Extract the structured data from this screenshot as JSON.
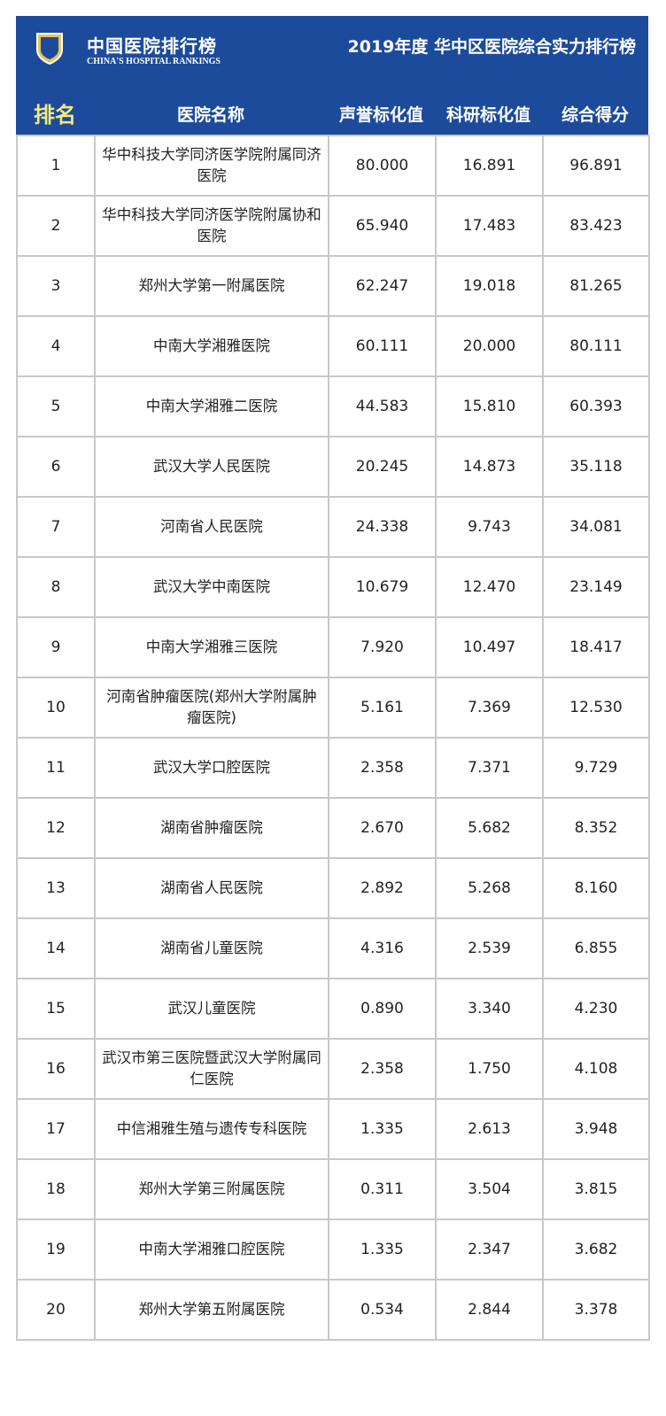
{
  "header": {
    "brand": "中国医院排行榜",
    "brand_en": "CHINA'S HOSPITAL RANKINGS",
    "title": "2019年度 华中区医院综合实力排行榜",
    "accent": "#1d4b9c"
  },
  "columns": [
    "排名",
    "医院名称",
    "声誉标化值",
    "科研标化值",
    "综合得分"
  ],
  "rows": [
    [
      "1",
      "华中科技大学同济医学院附属同济医院",
      "80.000",
      "16.891",
      "96.891"
    ],
    [
      "2",
      "华中科技大学同济医学院附属协和医院",
      "65.940",
      "17.483",
      "83.423"
    ],
    [
      "3",
      "郑州大学第一附属医院",
      "62.247",
      "19.018",
      "81.265"
    ],
    [
      "4",
      "中南大学湘雅医院",
      "60.111",
      "20.000",
      "80.111"
    ],
    [
      "5",
      "中南大学湘雅二医院",
      "44.583",
      "15.810",
      "60.393"
    ],
    [
      "6",
      "武汉大学人民医院",
      "20.245",
      "14.873",
      "35.118"
    ],
    [
      "7",
      "河南省人民医院",
      "24.338",
      "9.743",
      "34.081"
    ],
    [
      "8",
      "武汉大学中南医院",
      "10.679",
      "12.470",
      "23.149"
    ],
    [
      "9",
      "中南大学湘雅三医院",
      "7.920",
      "10.497",
      "18.417"
    ],
    [
      "10",
      "河南省肿瘤医院(郑州大学附属肿瘤医院)",
      "5.161",
      "7.369",
      "12.530"
    ],
    [
      "11",
      "武汉大学口腔医院",
      "2.358",
      "7.371",
      "9.729"
    ],
    [
      "12",
      "湖南省肿瘤医院",
      "2.670",
      "5.682",
      "8.352"
    ],
    [
      "13",
      "湖南省人民医院",
      "2.892",
      "5.268",
      "8.160"
    ],
    [
      "14",
      "湖南省儿童医院",
      "4.316",
      "2.539",
      "6.855"
    ],
    [
      "15",
      "武汉儿童医院",
      "0.890",
      "3.340",
      "4.230"
    ],
    [
      "16",
      "武汉市第三医院暨武汉大学附属同仁医院",
      "2.358",
      "1.750",
      "4.108"
    ],
    [
      "17",
      "中信湘雅生殖与遗传专科医院",
      "1.335",
      "2.613",
      "3.948"
    ],
    [
      "18",
      "郑州大学第三附属医院",
      "0.311",
      "3.504",
      "3.815"
    ],
    [
      "19",
      "中南大学湘雅口腔医院",
      "1.335",
      "2.347",
      "3.682"
    ],
    [
      "20",
      "郑州大学第五附属医院",
      "0.534",
      "2.844",
      "3.378"
    ]
  ]
}
